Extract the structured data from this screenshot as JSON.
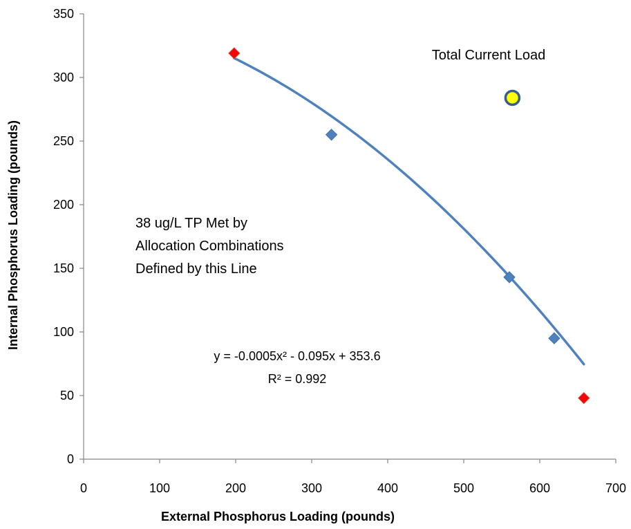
{
  "chart_data": {
    "type": "scatter",
    "title": "",
    "xlabel": "External Phosphorus Loading (pounds)",
    "ylabel": "Internal Phosphorus Loading (pounds)",
    "xlim": [
      0,
      700
    ],
    "ylim": [
      0,
      350
    ],
    "x_ticks": [
      "0",
      "100",
      "200",
      "300",
      "400",
      "500",
      "600",
      "700"
    ],
    "y_ticks": [
      "0",
      "50",
      "100",
      "150",
      "200",
      "250",
      "300",
      "350"
    ],
    "grid": false,
    "legend": "none",
    "series": [
      {
        "marker": "diamond",
        "color": "#4f81bd",
        "points": [
          {
            "x": 326,
            "y": 255
          },
          {
            "x": 560,
            "y": 143
          },
          {
            "x": 619,
            "y": 95
          }
        ]
      },
      {
        "marker": "diamond",
        "color": "#ff0000",
        "points": [
          {
            "x": 198,
            "y": 319
          },
          {
            "x": 658,
            "y": 48
          }
        ]
      },
      {
        "marker": "circle",
        "color": "#ffff00",
        "points": [
          {
            "x": 564,
            "y": 284
          }
        ]
      }
    ],
    "trendline": {
      "type": "polynomial",
      "order": 2,
      "coefficients": [
        -0.0005,
        -0.095,
        353.6
      ],
      "x_range": [
        198,
        658
      ],
      "color": "#4f81bd"
    },
    "annotations": {
      "current_load": "Total Current Load",
      "allocation_lines": [
        "38 ug/L TP Met by",
        "Allocation Combinations",
        "Defined by this Line"
      ],
      "equation": "y = -0.0005x² - 0.095x + 353.6",
      "r_squared": "R² = 0.992"
    }
  }
}
